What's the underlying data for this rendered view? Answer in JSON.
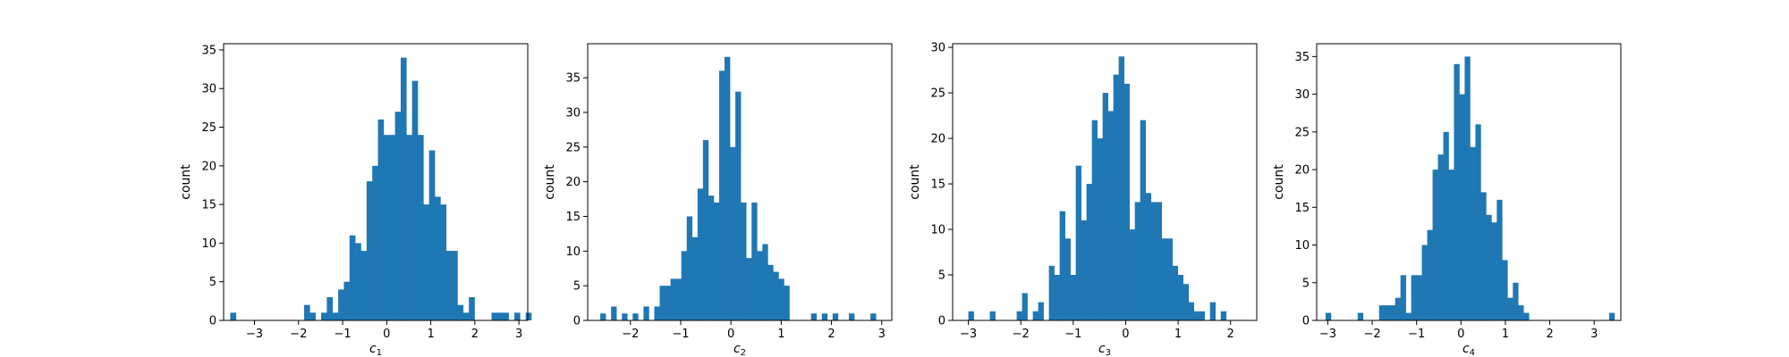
{
  "chart_data": [
    {
      "type": "bar",
      "xlabel_main": "c",
      "xlabel_sub": "1",
      "ylabel": "count",
      "bar_color": "#1f77b4",
      "xlim": [
        -3.7,
        3.2
      ],
      "ylim": [
        0,
        35.8
      ],
      "xticks": [
        -3,
        -2,
        -1,
        0,
        1,
        2,
        3
      ],
      "xtick_labels": [
        "−3",
        "−2",
        "−1",
        "0",
        "1",
        "2",
        "3"
      ],
      "yticks": [
        0,
        5,
        10,
        15,
        20,
        25,
        30,
        35
      ],
      "ytick_labels": [
        "0",
        "5",
        "10",
        "15",
        "20",
        "25",
        "30",
        "35"
      ],
      "bins": {
        "start": -3.55,
        "width": 0.1289,
        "counts": [
          1,
          0,
          0,
          0,
          0,
          0,
          0,
          0,
          0,
          0,
          0,
          0,
          0,
          2,
          1,
          0,
          1,
          3,
          1,
          4,
          5,
          11,
          10,
          9,
          18,
          20,
          26,
          24,
          24,
          27,
          34,
          24,
          31,
          24,
          15,
          22,
          16,
          15,
          9,
          9,
          2,
          1,
          3,
          0,
          0,
          0,
          1,
          1,
          1,
          0,
          1,
          0,
          1
        ]
      }
    },
    {
      "type": "bar",
      "xlabel_main": "c",
      "xlabel_sub": "2",
      "ylabel": "count",
      "bar_color": "#1f77b4",
      "xlim": [
        -2.85,
        3.2
      ],
      "ylim": [
        0,
        39.9
      ],
      "xticks": [
        -2,
        -1,
        0,
        1,
        2,
        3
      ],
      "xtick_labels": [
        "−2",
        "−1",
        "0",
        "1",
        "2",
        "3"
      ],
      "yticks": [
        0,
        5,
        10,
        15,
        20,
        25,
        30,
        35
      ],
      "ytick_labels": [
        "0",
        "5",
        "10",
        "15",
        "20",
        "25",
        "30",
        "35"
      ],
      "bins": {
        "start": -2.6,
        "width": 0.1075,
        "counts": [
          1,
          0,
          2,
          0,
          1,
          0,
          1,
          0,
          2,
          0,
          2,
          5,
          5,
          6,
          6,
          10,
          15,
          12,
          19,
          26,
          18,
          17,
          36,
          38,
          25,
          33,
          17,
          9,
          17,
          10,
          11,
          8,
          7,
          6,
          5,
          0,
          0,
          0,
          0,
          1,
          0,
          1,
          0,
          1,
          0,
          0,
          1,
          0,
          0,
          0,
          1
        ]
      }
    },
    {
      "type": "bar",
      "xlabel_main": "c",
      "xlabel_sub": "3",
      "ylabel": "count",
      "bar_color": "#1f77b4",
      "xlim": [
        -3.3,
        2.5
      ],
      "ylim": [
        0,
        30.4
      ],
      "xticks": [
        -3,
        -2,
        -1,
        0,
        1,
        2
      ],
      "xtick_labels": [
        "−3",
        "−2",
        "−1",
        "0",
        "1",
        "2"
      ],
      "yticks": [
        0,
        5,
        10,
        15,
        20,
        25,
        30
      ],
      "ytick_labels": [
        "0",
        "5",
        "10",
        "15",
        "20",
        "25",
        "30"
      ],
      "bins": {
        "start": -3.0,
        "width": 0.1024,
        "counts": [
          1,
          0,
          0,
          0,
          1,
          0,
          0,
          0,
          0,
          1,
          3,
          0,
          1,
          2,
          0,
          6,
          5,
          12,
          9,
          5,
          17,
          11,
          15,
          22,
          20,
          25,
          23,
          27,
          29,
          26,
          10,
          13,
          22,
          14,
          13,
          13,
          9,
          9,
          6,
          5,
          4,
          2,
          1,
          1,
          0,
          2,
          0,
          1
        ]
      }
    },
    {
      "type": "bar",
      "xlabel_main": "c",
      "xlabel_sub": "4",
      "ylabel": "count",
      "bar_color": "#1f77b4",
      "xlim": [
        -3.25,
        3.6
      ],
      "ylim": [
        0,
        36.7
      ],
      "xticks": [
        -3,
        -2,
        -1,
        0,
        1,
        2,
        3
      ],
      "xtick_labels": [
        "−3",
        "−2",
        "−1",
        "0",
        "1",
        "2",
        "3"
      ],
      "yticks": [
        0,
        5,
        10,
        15,
        20,
        25,
        30,
        35
      ],
      "ytick_labels": [
        "0",
        "5",
        "10",
        "15",
        "20",
        "25",
        "30",
        "35"
      ],
      "bins": {
        "start": -3.05,
        "width": 0.1205,
        "counts": [
          1,
          0,
          0,
          0,
          0,
          0,
          1,
          0,
          0,
          0,
          2,
          2,
          2,
          3,
          6,
          1,
          6,
          6,
          10,
          12,
          20,
          22,
          25,
          20,
          34,
          30,
          35,
          23,
          26,
          17,
          14,
          13,
          16,
          8,
          3,
          5,
          2,
          1,
          0,
          0,
          0,
          0,
          0,
          0,
          0,
          0,
          0,
          0,
          0,
          0,
          0,
          0,
          0,
          1
        ]
      }
    }
  ]
}
